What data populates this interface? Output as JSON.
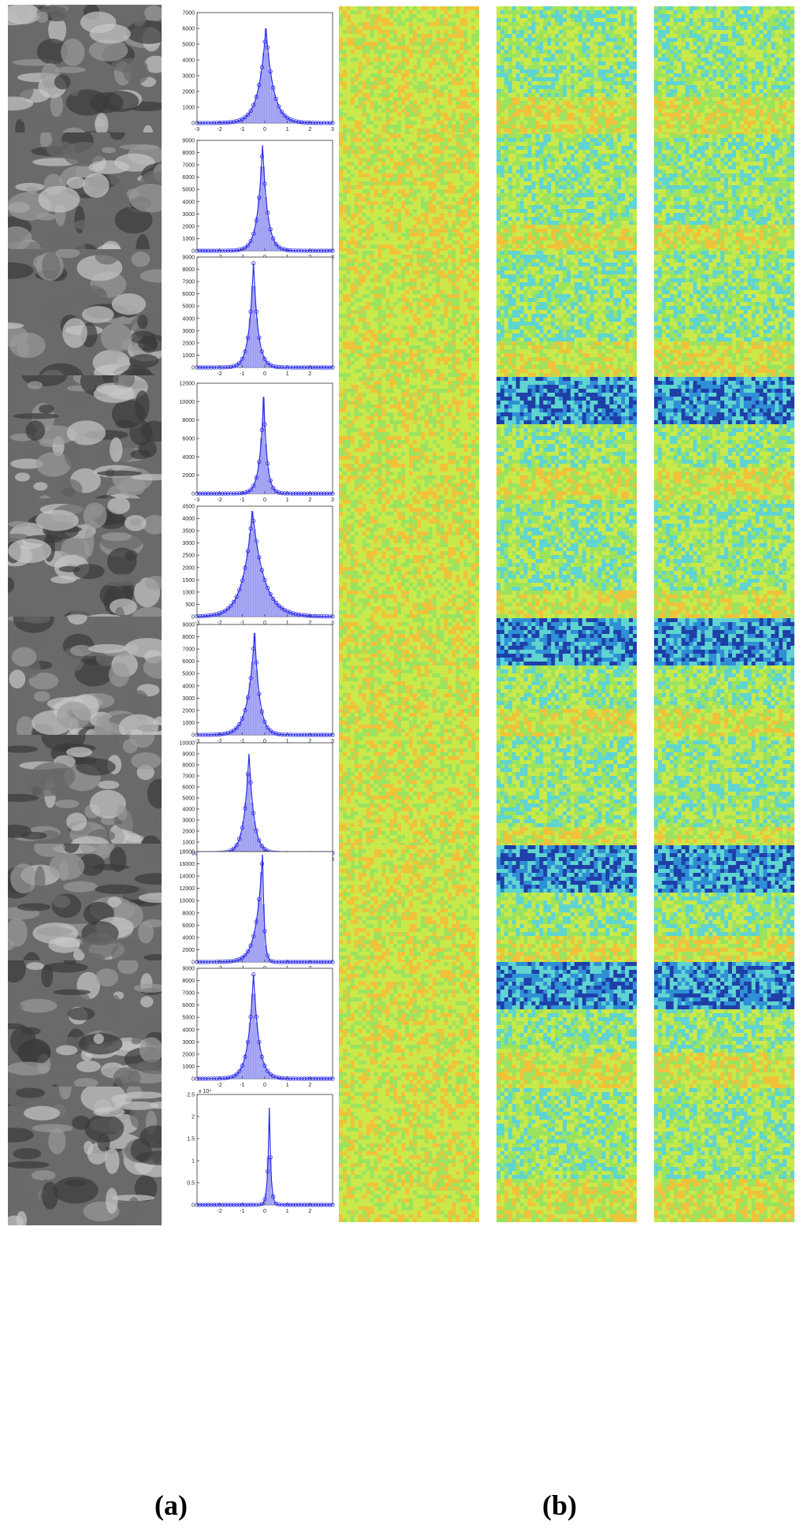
{
  "panel_labels": {
    "a": "(a)",
    "b": "(b)"
  },
  "colors": {
    "bar_fill": "#a9a9f5",
    "curve": "#2a2ae8",
    "axis": "#333333",
    "map_palette": [
      "#1f3fa8",
      "#2f8fd6",
      "#5fd4d0",
      "#9be35f",
      "#c9e94a",
      "#f0c23a",
      "#e0702a",
      "#b8281e"
    ],
    "photo_gray": [
      "#3a3a3a",
      "#6a6a6a",
      "#9a9a9a",
      "#c8c8c8"
    ]
  },
  "chart_data": [
    {
      "type": "bar",
      "row": 1,
      "xlim": [
        -3,
        3
      ],
      "ylim": [
        0,
        7000
      ],
      "x_ticks": [
        "-3",
        "-2",
        "-1",
        "0",
        "1",
        "2",
        "3"
      ],
      "y_ticks": [
        "0",
        "1000",
        "2000",
        "3000",
        "4000",
        "5000",
        "6000",
        "7000"
      ],
      "y_exponent": "",
      "peak_x": 0.05,
      "peak_y": 6000,
      "width_left": 0.33,
      "width_right": 0.33
    },
    {
      "type": "bar",
      "row": 2,
      "xlim": [
        -3,
        3
      ],
      "ylim": [
        0,
        9000
      ],
      "x_ticks": [
        "-2",
        "-1",
        "0",
        "1",
        "2",
        "3"
      ],
      "y_ticks": [
        "0",
        "1000",
        "2000",
        "3000",
        "4000",
        "5000",
        "6000",
        "7000",
        "8000",
        "9000"
      ],
      "y_exponent": "",
      "peak_x": -0.1,
      "peak_y": 8600,
      "width_left": 0.22,
      "width_right": 0.22
    },
    {
      "type": "bar",
      "row": 3,
      "xlim": [
        -3,
        3
      ],
      "ylim": [
        0,
        9000
      ],
      "x_ticks": [
        "-2",
        "-1",
        "0",
        "1",
        "2"
      ],
      "y_ticks": [
        "0",
        "1000",
        "2000",
        "3000",
        "4000",
        "5000",
        "6000",
        "7000",
        "8000",
        "9000"
      ],
      "y_exponent": "",
      "peak_x": -0.5,
      "peak_y": 8500,
      "width_left": 0.2,
      "width_right": 0.2
    },
    {
      "type": "bar",
      "row": 4,
      "xlim": [
        -3,
        3
      ],
      "ylim": [
        0,
        12000
      ],
      "x_ticks": [
        "-3",
        "-2",
        "-1",
        "0",
        "1",
        "2",
        "3"
      ],
      "y_ticks": [
        "0",
        "2000",
        "4000",
        "6000",
        "8000",
        "10000",
        "12000"
      ],
      "y_exponent": "",
      "peak_x": -0.05,
      "peak_y": 10500,
      "width_left": 0.18,
      "width_right": 0.15
    },
    {
      "type": "bar",
      "row": 5,
      "xlim": [
        -3,
        3
      ],
      "ylim": [
        0,
        4500
      ],
      "x_ticks": [
        "-3",
        "-2",
        "-1",
        "0",
        "1",
        "2",
        "3"
      ],
      "y_ticks": [
        "0",
        "500",
        "1000",
        "1500",
        "2000",
        "2500",
        "3000",
        "3500",
        "4000",
        "4500"
      ],
      "y_exponent": "",
      "peak_x": -0.55,
      "peak_y": 4300,
      "width_left": 0.42,
      "width_right": 0.52
    },
    {
      "type": "bar",
      "row": 6,
      "xlim": [
        -3,
        3
      ],
      "ylim": [
        0,
        9000
      ],
      "x_ticks": [
        "-3",
        "-2",
        "-1",
        "0",
        "1",
        "2",
        "3"
      ],
      "y_ticks": [
        "0",
        "1000",
        "2000",
        "3000",
        "4000",
        "5000",
        "6000",
        "7000",
        "8000",
        "9000"
      ],
      "y_exponent": "",
      "peak_x": -0.45,
      "peak_y": 8300,
      "width_left": 0.3,
      "width_right": 0.22
    },
    {
      "type": "bar",
      "row": 7,
      "xlim": [
        -3,
        3
      ],
      "ylim": [
        0,
        10000
      ],
      "x_ticks": [
        "-2",
        "-1",
        "0",
        "1",
        "2",
        "3"
      ],
      "y_ticks": [
        "0",
        "1000",
        "2000",
        "3000",
        "4000",
        "5000",
        "6000",
        "7000",
        "8000",
        "9000",
        "10000"
      ],
      "y_exponent": "",
      "peak_x": -0.7,
      "peak_y": 9000,
      "width_left": 0.22,
      "width_right": 0.22
    },
    {
      "type": "bar",
      "row": 8,
      "xlim": [
        -3,
        3
      ],
      "ylim": [
        0,
        18000
      ],
      "x_ticks": [
        "-2",
        "-1",
        "0",
        "1",
        "2"
      ],
      "y_ticks": [
        "0",
        "2000",
        "4000",
        "6000",
        "8000",
        "10000",
        "12000",
        "14000",
        "16000",
        "18000"
      ],
      "y_exponent": "",
      "peak_x": -0.1,
      "peak_y": 17500,
      "width_left": 0.28,
      "width_right": 0.08
    },
    {
      "type": "bar",
      "row": 9,
      "xlim": [
        -3,
        3
      ],
      "ylim": [
        0,
        9000
      ],
      "x_ticks": [
        "-2",
        "-1",
        "0",
        "1",
        "2"
      ],
      "y_ticks": [
        "0",
        "1000",
        "2000",
        "3000",
        "4000",
        "5000",
        "6000",
        "7000",
        "8000",
        "9000"
      ],
      "y_exponent": "",
      "peak_x": -0.5,
      "peak_y": 8500,
      "width_left": 0.24,
      "width_right": 0.24
    },
    {
      "type": "bar",
      "row": 10,
      "xlim": [
        -3,
        3
      ],
      "ylim": [
        0,
        2.5
      ],
      "x_ticks": [
        "-2",
        "-1",
        "0",
        "1",
        "2"
      ],
      "y_ticks": [
        "0",
        "0.5",
        "1",
        "1.5",
        "2",
        "2.5"
      ],
      "y_exponent": "x 10⁴",
      "peak_x": 0.2,
      "peak_y": 2.2,
      "width_left": 0.07,
      "width_right": 0.07
    }
  ]
}
